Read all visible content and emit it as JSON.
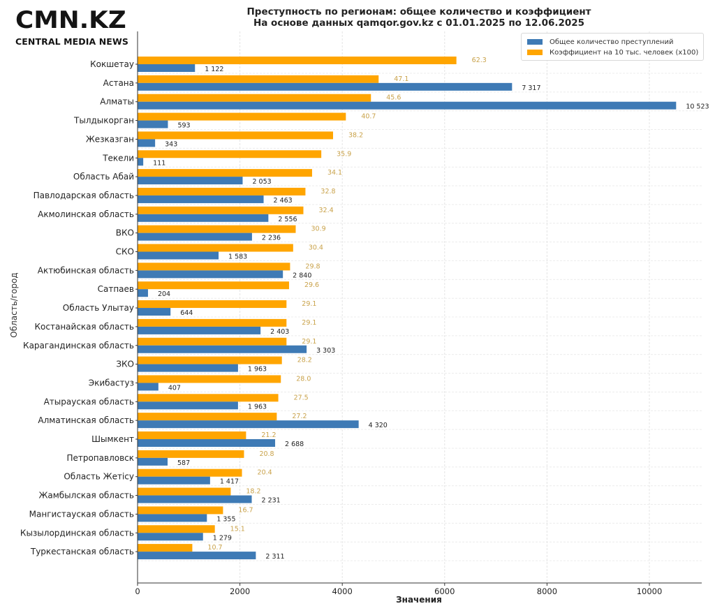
{
  "brand": {
    "logo_text": "CMN.KZ",
    "logo_subtitle": "CENTRAL MEDIA NEWS"
  },
  "colors": {
    "total": "#3e7ab5",
    "coef": "#ffa500",
    "coef_label": "#c9a24a",
    "total_label": "#222222"
  },
  "chart_data": {
    "type": "bar",
    "orientation": "horizontal",
    "title": "Преступность по регионам: общее количество и коэффициент",
    "subtitle": "На основе данных qamqor.gov.kz с 01.01.2025 по 12.06.2025",
    "xlabel": "Значения",
    "ylabel": "Область/город",
    "xlim": [
      0,
      11000
    ],
    "xticks": [
      0,
      2000,
      4000,
      6000,
      8000,
      10000
    ],
    "grid": true,
    "legend_position": "top-right",
    "categories": [
      "Кокшетау",
      "Астана",
      "Алматы",
      "Тылдыкорган",
      "Жезказган",
      "Текели",
      "Область Абай",
      "Павлодарская область",
      "Акмолинская область",
      "ВКО",
      "СКО",
      "Актюбинская область",
      "Сатпаев",
      "Область Улытау",
      "Костанайская область",
      "Карагандинская область",
      "ЗКО",
      "Экибастуз",
      "Атырауская область",
      "Алматинская область",
      "Шымкент",
      "Петропавловск",
      "Область Жетісу",
      "Жамбылская область",
      "Мангистауская область",
      "Кызылординская область",
      "Туркестанская область"
    ],
    "series": [
      {
        "name": "Общее количество преступлений",
        "values": [
          1122,
          7317,
          10523,
          593,
          343,
          111,
          2053,
          2463,
          2556,
          2236,
          1583,
          2840,
          204,
          644,
          2403,
          3303,
          1963,
          407,
          1963,
          4320,
          2688,
          587,
          1417,
          2231,
          1355,
          1279,
          2311
        ],
        "labels": [
          "1 122",
          "7 317",
          "10 523",
          "593",
          "343",
          "111",
          "2 053",
          "2 463",
          "2 556",
          "2 236",
          "1 583",
          "2 840",
          "204",
          "644",
          "2 403",
          "3 303",
          "1 963",
          "407",
          "1 963",
          "4 320",
          "2 688",
          "587",
          "1 417",
          "2 231",
          "1 355",
          "1 279",
          "2 311"
        ]
      },
      {
        "name": "Коэффициент на 10 тыс. человек (x100)",
        "values": [
          62.3,
          47.1,
          45.6,
          40.7,
          38.2,
          35.9,
          34.1,
          32.8,
          32.4,
          30.9,
          30.4,
          29.8,
          29.6,
          29.1,
          29.1,
          29.1,
          28.2,
          28.0,
          27.5,
          27.2,
          21.2,
          20.8,
          20.4,
          18.2,
          16.7,
          15.1,
          10.7
        ],
        "labels": [
          "62.3",
          "47.1",
          "45.6",
          "40.7",
          "38.2",
          "35.9",
          "34.1",
          "32.8",
          "32.4",
          "30.9",
          "30.4",
          "29.8",
          "29.6",
          "29.1",
          "29.1",
          "29.1",
          "28.2",
          "28.0",
          "27.5",
          "27.2",
          "21.2",
          "20.8",
          "20.4",
          "18.2",
          "16.7",
          "15.1",
          "10.7"
        ],
        "scale": 100
      }
    ]
  }
}
